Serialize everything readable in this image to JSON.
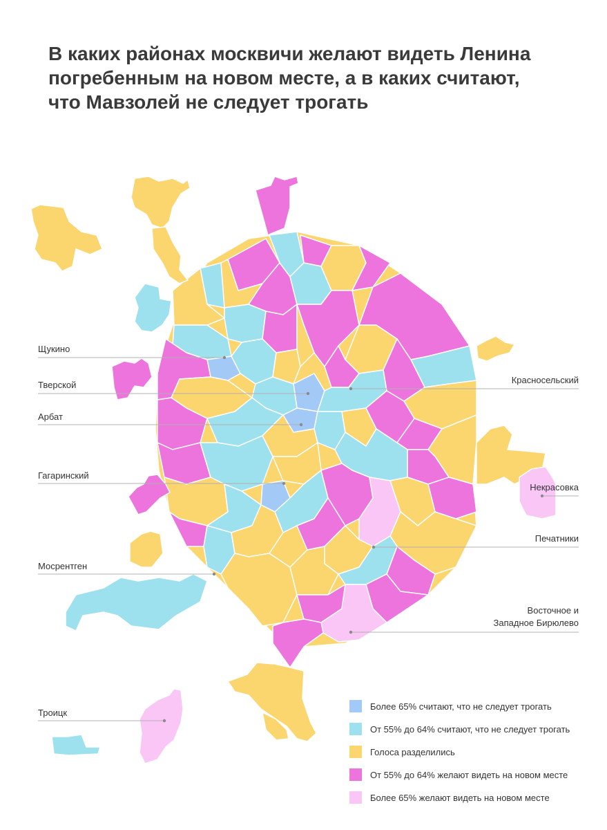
{
  "title_lines": [
    "В каких районах москвичи желают видеть Ленина",
    "погребенным на новом месте, а в каких считают,",
    "что Мавзолей не следует трогать"
  ],
  "colors": {
    "blue": "#a3c9f7",
    "cyan": "#9ee1ee",
    "yellow": "#fbd56e",
    "magenta": "#ec74dc",
    "pink": "#f9c6f6"
  },
  "legend": [
    {
      "label": "Более 65% считают, что не следует трогать",
      "color": "#a3c9f7"
    },
    {
      "label": "От 55% до 64% считают, что не следует трогать",
      "color": "#9ee1ee"
    },
    {
      "label": "Голоса разделились",
      "color": "#fbd56e"
    },
    {
      "label": "От 55% до 64% желают видеть на новом месте",
      "color": "#ec74dc"
    },
    {
      "label": "Более 65% желают видеть на новом месте",
      "color": "#f9c6f6"
    }
  ],
  "callouts": {
    "shchukino": "Щукино",
    "tverskoy": "Тверской",
    "arbat": "Арбат",
    "gagarinsky": "Гагаринский",
    "mosrentgen": "Мосрентген",
    "troitsk": "Троицк",
    "krasnoselsky": "Красносельский",
    "nekrasovka": "Некрасовка",
    "pechatniki": "Печатники",
    "biryulevo_line1": "Восточное и",
    "biryulevo_line2": "Западное Бирюлево"
  }
}
